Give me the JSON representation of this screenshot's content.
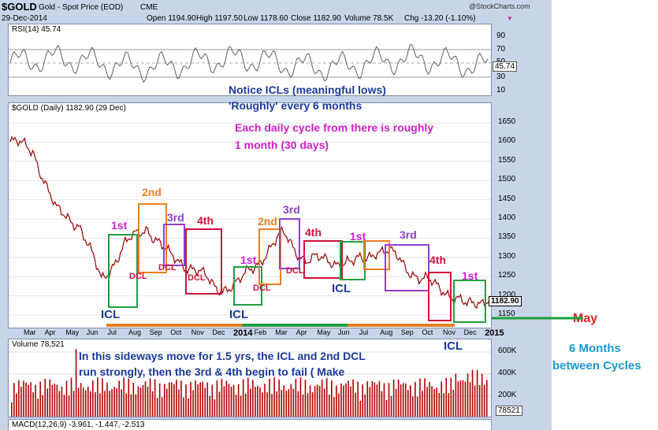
{
  "header": {
    "symbol": "$GOLD",
    "name": "Gold - Spot Price (EOD)",
    "exchange": "CME",
    "brand": "@StockCharts.com",
    "date": "29-Dec-2014",
    "open": "Open 1194.90",
    "high": "High 1197.50",
    "low": "Low 1178.60",
    "close": "Close 1182.90",
    "volume": "Volume 78.5K",
    "chg": "Chg -13.20 (-1.10%)"
  },
  "rsi": {
    "label": "RSI(14) 45.74",
    "last_value": "45.74",
    "ticks": [
      "90",
      "70",
      "50",
      "30",
      "10"
    ]
  },
  "price": {
    "label": "$GOLD (Daily) 1182.90 (29 Dec)",
    "last_value": "1182.90",
    "ticks": [
      "1650",
      "1600",
      "1550",
      "1500",
      "1450",
      "1400",
      "1350",
      "1300",
      "1250",
      "1200",
      "1150"
    ]
  },
  "xaxis": {
    "labels": [
      "Mar",
      "Apr",
      "May",
      "Jun",
      "Jul",
      "Aug",
      "Sep",
      "Oct",
      "Nov",
      "Dec",
      "2014",
      "Feb",
      "Mar",
      "Apr",
      "May",
      "Jun",
      "Jul",
      "Aug",
      "Sep",
      "Oct",
      "Nov",
      "Dec",
      "2015"
    ]
  },
  "volume": {
    "label": "Volume 78,521",
    "last_value": "78521",
    "ticks": [
      "600K",
      "400K",
      "200K"
    ]
  },
  "macd": {
    "label": "MACD(12,26,9) -3.961, -1.447, -2.513"
  },
  "annotations": {
    "notice1": "Notice ICLs  (meaningful lows)",
    "notice2": "'Roughly'  every 6 months",
    "cycle1": "Each daily cycle from there is roughly",
    "cycle2": "1 month   (30 days)",
    "side1": "In this sideways move for 1.5 yrs,  the ICL and 2nd DCL",
    "side2": "run strongly,  then the 3rd & 4th begin to fail ( Make",
    "may": "May",
    "months1": "6 Months",
    "months2": "between Cycles",
    "icl_a": "ICL",
    "icl_b": "ICL",
    "icl_c": "ICL",
    "icl_d": "ICL",
    "c1_1st": "1st",
    "c1_2nd": "2nd",
    "c1_3rd": "3rd",
    "c1_4th": "4th",
    "c2_1st": "1st",
    "c2_2nd": "2nd",
    "c2_3rd": "3rd",
    "c2_4th": "4th",
    "c3_1st": "1st",
    "c3_3rd": "3rd",
    "c3_4th": "4th",
    "c4_1st": "1st",
    "dcl_1": "DCL",
    "dcl_2": "DCL",
    "dcl_3": "DCL",
    "dcl_4": "DCL",
    "dcl_5": "DCL"
  },
  "colors": {
    "price": "#9a0000",
    "rsi": "#606060",
    "volume": "#b00000",
    "blue_text": "#1a3a9a",
    "magenta": "#d020c8",
    "orange": "#e88020",
    "purple": "#9040d0",
    "crimson": "#d0103a",
    "green": "#20a040",
    "teal": "#1a9ad0",
    "red_text": "#e02020"
  },
  "chart_data": {
    "type": "line",
    "title": "$GOLD (Daily) 1182.90 (29 Dec)",
    "xlabel": "",
    "ylabel": "",
    "ylim": [
      1130,
      1700
    ],
    "x": [
      "Mar 2013",
      "Apr 2013",
      "May 2013",
      "Jun 2013",
      "Jul 2013",
      "Aug 2013",
      "Sep 2013",
      "Oct 2013",
      "Nov 2013",
      "Dec 2013",
      "Jan 2014",
      "Feb 2014",
      "Mar 2014",
      "Apr 2014",
      "May 2014",
      "Jun 2014",
      "Jul 2014",
      "Aug 2014",
      "Sep 2014",
      "Oct 2014",
      "Nov 2014",
      "Dec 2014"
    ],
    "series": [
      {
        "values": [
          1600,
          1580,
          1420,
          1390,
          1240,
          1330,
          1380,
          1300,
          1275,
          1220,
          1230,
          1300,
          1360,
          1290,
          1295,
          1280,
          1320,
          1300,
          1240,
          1220,
          1170,
          1200
        ]
      }
    ]
  }
}
